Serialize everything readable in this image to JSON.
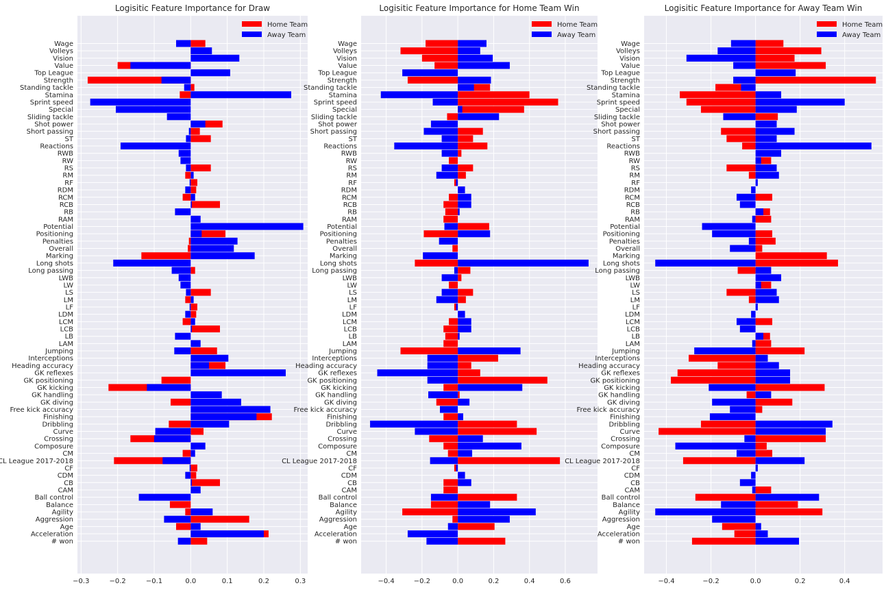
{
  "chart_data": [
    {
      "type": "bar",
      "orientation": "horizontal",
      "title": "Logisitic Feature Importance for Draw",
      "xlabel": "",
      "ylabel": "",
      "xlim": [
        -0.31,
        0.32
      ],
      "xticks": [
        -0.3,
        -0.2,
        -0.1,
        0.0,
        0.1,
        0.2,
        0.3
      ],
      "xtick_labels": [
        "−0.3",
        "−0.2",
        "−0.1",
        "0.0",
        "0.1",
        "0.2",
        "0.3"
      ],
      "grid": true,
      "legend": "top-right",
      "categories": [
        "Wage",
        "Volleys",
        "Vision",
        "Value",
        "Top League",
        "Strength",
        "Standing tackle",
        "Stamina",
        "Sprint speed",
        "Special",
        "Sliding tackle",
        "Shot power",
        "Short passing",
        "ST",
        "Reactions",
        "RWB",
        "RW",
        "RS",
        "RM",
        "RF",
        "RDM",
        "RCM",
        "RCB",
        "RB",
        "RAM",
        "Potential",
        "Positioning",
        "Penalties",
        "Overall",
        "Marking",
        "Long shots",
        "Long passing",
        "LWB",
        "LW",
        "LS",
        "LM",
        "LF",
        "LDM",
        "LCM",
        "LCB",
        "LB",
        "LAM",
        "Jumping",
        "Interceptions",
        "Heading accuracy",
        "GK reflexes",
        "GK positioning",
        "GK kicking",
        "GK handling",
        "GK diving",
        "Free kick accuracy",
        "Finishing",
        "Dribbling",
        "Curve",
        "Crossing",
        "Composure",
        "CM",
        "CL League 2017-2018",
        "CF",
        "CDM",
        "CB",
        "CAM",
        "Ball control",
        "Balance",
        "Agility",
        "Aggression",
        "Age",
        "Acceleration",
        "# won"
      ],
      "series": [
        {
          "name": "Home Team",
          "color": "#ff0000",
          "values": [
            0.04,
            0.002,
            0.0,
            -0.2,
            0.0,
            -0.282,
            0.01,
            -0.03,
            0.0,
            0.0,
            0.0,
            0.087,
            0.025,
            0.055,
            0.0,
            0.0,
            0.0,
            0.055,
            -0.015,
            0.018,
            0.015,
            -0.022,
            0.08,
            0.0,
            0.0,
            0.0,
            0.095,
            -0.005,
            -0.008,
            -0.135,
            0.0,
            0.012,
            0.0,
            0.0,
            0.055,
            -0.015,
            0.018,
            0.015,
            -0.022,
            0.08,
            0.0,
            0.0,
            0.072,
            0.0,
            0.095,
            0.0,
            -0.08,
            -0.225,
            0.0,
            -0.055,
            0.0,
            0.222,
            -0.06,
            0.035,
            -0.165,
            0.0,
            -0.022,
            -0.21,
            0.018,
            0.015,
            0.08,
            0.0,
            0.0,
            -0.057,
            -0.015,
            0.16,
            -0.04,
            0.213,
            0.045
          ]
        },
        {
          "name": "Away Team",
          "color": "#0000ff",
          "values": [
            -0.04,
            0.058,
            0.133,
            -0.165,
            0.108,
            -0.08,
            -0.018,
            0.275,
            -0.275,
            -0.205,
            -0.065,
            0.04,
            -0.005,
            -0.013,
            -0.192,
            -0.033,
            -0.028,
            -0.013,
            0.008,
            -0.003,
            -0.015,
            0.012,
            0.003,
            -0.043,
            0.027,
            0.308,
            0.03,
            0.128,
            0.118,
            0.175,
            -0.212,
            -0.052,
            -0.033,
            -0.028,
            -0.013,
            0.008,
            -0.003,
            -0.015,
            0.012,
            0.003,
            -0.043,
            0.027,
            -0.045,
            0.103,
            0.05,
            0.26,
            0.0,
            -0.12,
            0.085,
            0.138,
            0.218,
            0.18,
            0.105,
            -0.097,
            -0.1,
            0.04,
            0.012,
            -0.077,
            -0.003,
            -0.015,
            0.003,
            0.027,
            -0.142,
            0.0,
            0.06,
            -0.073,
            0.027,
            0.2,
            -0.035
          ]
        }
      ]
    },
    {
      "type": "bar",
      "orientation": "horizontal",
      "title": "Logisitic Feature Importance for Home Team Win",
      "xlabel": "",
      "ylabel": "",
      "xlim": [
        -0.54,
        0.78
      ],
      "xticks": [
        -0.4,
        -0.2,
        0.0,
        0.2,
        0.4,
        0.6
      ],
      "xtick_labels": [
        "−0.4",
        "−0.2",
        "0.0",
        "0.2",
        "0.4",
        "0.6"
      ],
      "grid": true,
      "legend": "top-right",
      "categories": [
        "Wage",
        "Volleys",
        "Vision",
        "Value",
        "Top League",
        "Strength",
        "Standing tackle",
        "Stamina",
        "Sprint speed",
        "Special",
        "Sliding tackle",
        "Shot power",
        "Short passing",
        "ST",
        "Reactions",
        "RWB",
        "RW",
        "RS",
        "RM",
        "RF",
        "RDM",
        "RCM",
        "RCB",
        "RB",
        "RAM",
        "Potential",
        "Positioning",
        "Penalties",
        "Overall",
        "Marking",
        "Long shots",
        "Long passing",
        "LWB",
        "LW",
        "LS",
        "LM",
        "LF",
        "LDM",
        "LCM",
        "LCB",
        "LB",
        "LAM",
        "Jumping",
        "Interceptions",
        "Heading accuracy",
        "GK reflexes",
        "GK positioning",
        "GK kicking",
        "GK handling",
        "GK diving",
        "Free kick accuracy",
        "Finishing",
        "Dribbling",
        "Curve",
        "Crossing",
        "Composure",
        "CM",
        "CL League 2017-2018",
        "CF",
        "CDM",
        "CB",
        "CAM",
        "Ball control",
        "Balance",
        "Agility",
        "Aggression",
        "Age",
        "Acceleration",
        "# won"
      ],
      "series": [
        {
          "name": "Home Team",
          "color": "#ff0000",
          "values": [
            -0.18,
            -0.32,
            -0.2,
            -0.13,
            0.0,
            -0.28,
            0.18,
            0.4,
            0.56,
            0.37,
            -0.06,
            0.0,
            0.14,
            0.085,
            0.165,
            0.02,
            -0.05,
            0.085,
            0.045,
            -0.02,
            0.0,
            -0.05,
            -0.08,
            -0.07,
            -0.08,
            0.175,
            -0.19,
            0.0,
            -0.03,
            0.0,
            -0.24,
            0.07,
            0.02,
            -0.05,
            0.085,
            0.045,
            -0.02,
            0.0,
            -0.05,
            -0.08,
            -0.07,
            -0.08,
            -0.32,
            0.225,
            0.075,
            0.125,
            0.5,
            -0.08,
            0.01,
            -0.12,
            0.0,
            -0.08,
            0.33,
            0.44,
            -0.16,
            -0.08,
            -0.055,
            0.57,
            -0.02,
            0.0,
            -0.08,
            -0.08,
            0.33,
            -0.15,
            -0.31,
            -0.03,
            0.205,
            0.0,
            0.265
          ]
        },
        {
          "name": "Away Team",
          "color": "#0000ff",
          "values": [
            0.16,
            0.125,
            0.195,
            0.29,
            -0.31,
            0.185,
            0.09,
            -0.43,
            -0.14,
            0.025,
            0.23,
            -0.15,
            -0.19,
            -0.09,
            -0.355,
            -0.09,
            0.0,
            -0.09,
            -0.12,
            -0.01,
            0.04,
            0.075,
            0.075,
            0.01,
            0.0,
            -0.075,
            0.18,
            -0.105,
            0.0,
            -0.195,
            0.73,
            -0.02,
            -0.09,
            0.0,
            -0.09,
            -0.12,
            -0.01,
            0.04,
            0.075,
            0.075,
            0.01,
            0.0,
            0.35,
            -0.17,
            -0.17,
            -0.45,
            -0.17,
            0.36,
            -0.165,
            0.065,
            -0.1,
            0.03,
            -0.49,
            -0.24,
            0.14,
            0.355,
            0.08,
            -0.155,
            -0.01,
            0.04,
            0.075,
            0.0,
            -0.15,
            0.18,
            0.435,
            0.29,
            -0.055,
            -0.28,
            -0.175
          ]
        }
      ]
    },
    {
      "type": "bar",
      "orientation": "horizontal",
      "title": "Logisitic Feature Importance for Away Team Win",
      "xlabel": "",
      "ylabel": "",
      "xlim": [
        -0.5,
        0.57
      ],
      "xticks": [
        -0.4,
        -0.2,
        0.0,
        0.2,
        0.4
      ],
      "xtick_labels": [
        "−0.4",
        "−0.2",
        "0.0",
        "0.2",
        "0.4"
      ],
      "grid": true,
      "legend": "top-right",
      "categories": [
        "Wage",
        "Volleys",
        "Vision",
        "Value",
        "Top League",
        "Strength",
        "Standing tackle",
        "Stamina",
        "Sprint speed",
        "Special",
        "Sliding tackle",
        "Shot power",
        "Short passing",
        "ST",
        "Reactions",
        "RWB",
        "RW",
        "RS",
        "RM",
        "RF",
        "RDM",
        "RCM",
        "RCB",
        "RB",
        "RAM",
        "Potential",
        "Positioning",
        "Penalties",
        "Overall",
        "Marking",
        "Long shots",
        "Long passing",
        "LWB",
        "LW",
        "LS",
        "LM",
        "LF",
        "LDM",
        "LCM",
        "LCB",
        "LB",
        "LAM",
        "Jumping",
        "Interceptions",
        "Heading accuracy",
        "GK reflexes",
        "GK positioning",
        "GK kicking",
        "GK handling",
        "GK diving",
        "Free kick accuracy",
        "Finishing",
        "Dribbling",
        "Curve",
        "Crossing",
        "Composure",
        "CM",
        "CL League 2017-2018",
        "CF",
        "CDM",
        "CB",
        "CAM",
        "Ball control",
        "Balance",
        "Agility",
        "Aggression",
        "Age",
        "Acceleration",
        "# won"
      ],
      "series": [
        {
          "name": "Home Team",
          "color": "#ff0000",
          "values": [
            0.125,
            0.295,
            0.175,
            0.315,
            0.0,
            0.54,
            -0.18,
            -0.34,
            -0.31,
            -0.245,
            0.1,
            0.0,
            -0.155,
            -0.13,
            -0.06,
            0.0,
            0.07,
            -0.13,
            -0.03,
            0.0,
            0.0,
            0.075,
            0.0,
            0.065,
            0.07,
            0.0,
            0.075,
            0.09,
            0.03,
            0.32,
            0.37,
            -0.08,
            0.0,
            0.07,
            -0.13,
            -0.03,
            0.0,
            0.0,
            0.075,
            0.0,
            0.065,
            0.07,
            0.22,
            -0.3,
            -0.17,
            -0.35,
            -0.38,
            0.31,
            -0.04,
            0.165,
            0.03,
            0.0,
            -0.245,
            -0.435,
            0.315,
            0.05,
            0.075,
            -0.325,
            0.0,
            0.0,
            0.0,
            0.07,
            -0.27,
            0.19,
            0.3,
            0.0,
            -0.15,
            -0.095,
            -0.285
          ]
        },
        {
          "name": "Away Team",
          "color": "#0000ff",
          "values": [
            -0.11,
            -0.17,
            -0.31,
            -0.1,
            0.18,
            -0.1,
            -0.065,
            0.115,
            0.4,
            0.185,
            -0.145,
            0.095,
            0.175,
            0.095,
            0.52,
            0.115,
            0.025,
            0.095,
            0.105,
            0.01,
            -0.02,
            -0.085,
            -0.07,
            0.035,
            -0.015,
            -0.24,
            -0.195,
            -0.03,
            -0.115,
            0.0,
            -0.45,
            0.07,
            0.115,
            0.025,
            0.095,
            0.105,
            0.01,
            -0.02,
            -0.085,
            -0.07,
            0.035,
            -0.015,
            -0.275,
            0.055,
            0.105,
            0.155,
            0.155,
            -0.21,
            0.07,
            -0.195,
            -0.115,
            -0.205,
            0.345,
            0.315,
            -0.05,
            -0.36,
            -0.085,
            0.22,
            0.01,
            -0.02,
            -0.07,
            -0.015,
            0.285,
            -0.155,
            -0.45,
            -0.195,
            0.025,
            0.055,
            0.195
          ]
        }
      ]
    }
  ]
}
